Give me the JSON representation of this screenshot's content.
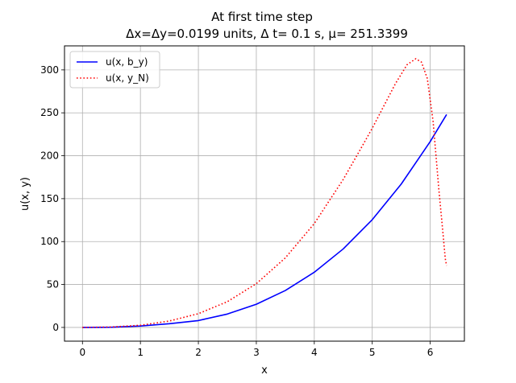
{
  "chart_data": {
    "type": "line",
    "title_line1": "At first time step",
    "title_line2": "Δx=Δy=0.0199 units, Δ t= 0.1 s, μ= 251.3399",
    "xlabel": "x",
    "ylabel": "u(x, y)",
    "xlim": [
      -0.31,
      6.59
    ],
    "ylim": [
      -16,
      328
    ],
    "xticks": [
      0,
      1,
      2,
      3,
      4,
      5,
      6
    ],
    "yticks": [
      0,
      50,
      100,
      150,
      200,
      250,
      300
    ],
    "grid": true,
    "legend_position": "top-left",
    "series": [
      {
        "name": "u(x, b_y)",
        "color": "#0000ff",
        "style": "solid",
        "x": [
          0,
          0.5,
          1,
          1.5,
          2,
          2.5,
          3,
          3.5,
          4,
          4.5,
          5,
          5.5,
          6,
          6.283
        ],
        "y": [
          0,
          0.2,
          1.6,
          4.3,
          8.0,
          15.6,
          27.0,
          43.0,
          64.3,
          91.5,
          125.5,
          167.0,
          216.5,
          248.0
        ]
      },
      {
        "name": "u(x, y_N)",
        "color": "#ff0000",
        "style": "dotted",
        "x": [
          0,
          0.5,
          1,
          1.5,
          2,
          2.5,
          3,
          3.5,
          4,
          4.5,
          4.8,
          5,
          5.2,
          5.4,
          5.6,
          5.75,
          5.85,
          5.95,
          6.05,
          6.15,
          6.22,
          6.26,
          6.283
        ],
        "y": [
          0,
          0.5,
          2.5,
          7.5,
          16.0,
          30.0,
          51.0,
          81.0,
          121.0,
          172.5,
          208.0,
          232.0,
          258.0,
          284.0,
          306.0,
          313.0,
          309.0,
          290.0,
          240.0,
          160.0,
          110.0,
          80.0,
          72.0
        ]
      }
    ]
  }
}
